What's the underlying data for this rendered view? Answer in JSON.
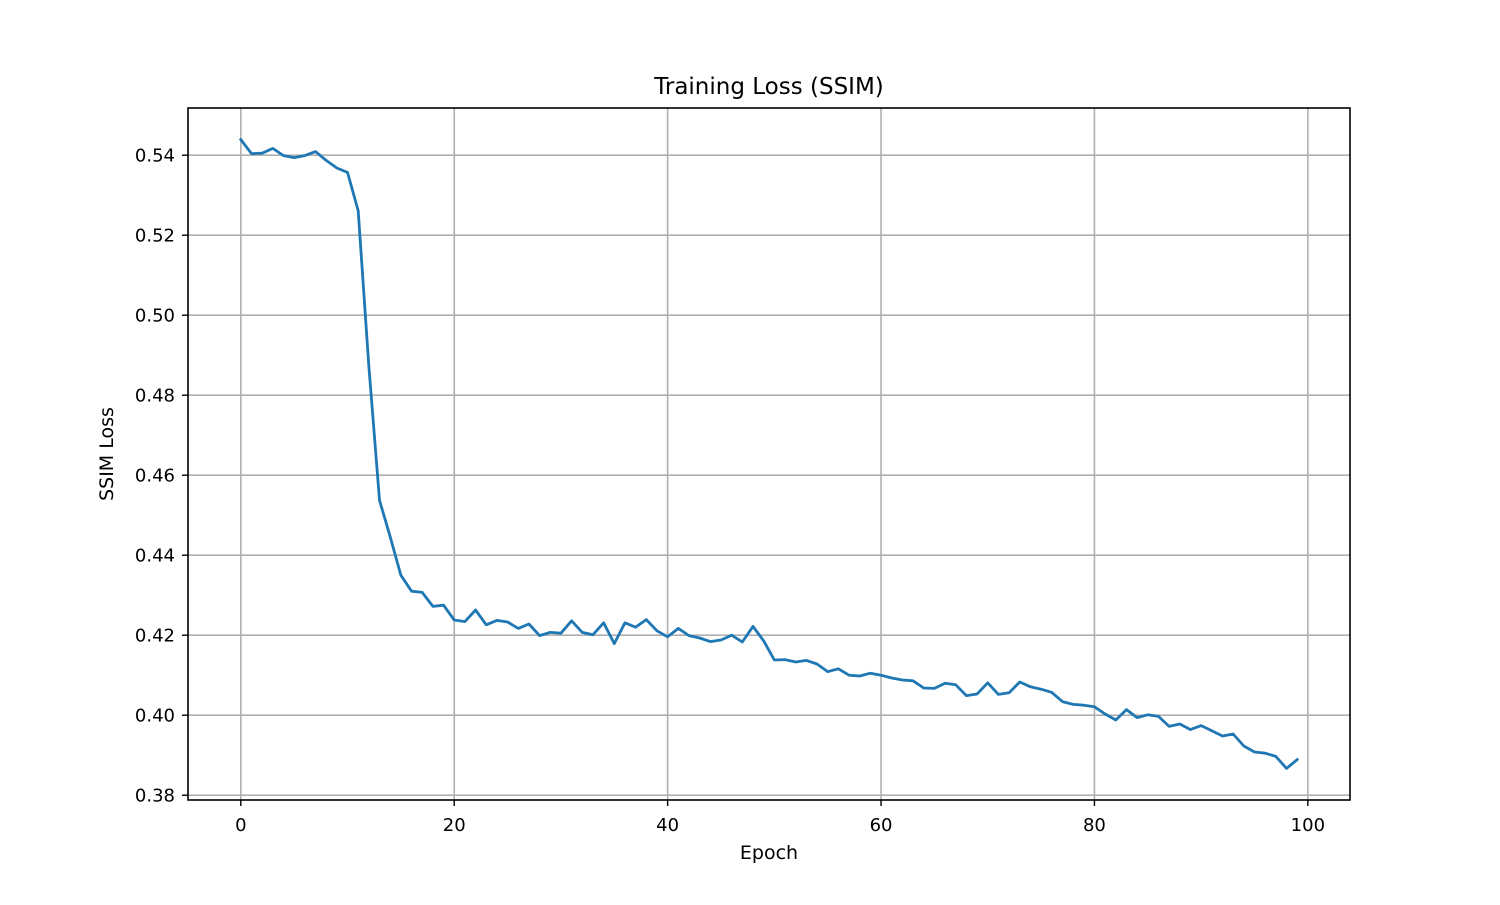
{
  "chart_data": {
    "type": "line",
    "title": "Training Loss (SSIM)",
    "xlabel": "Epoch",
    "ylabel": "SSIM Loss",
    "xlim": [
      -4.95,
      103.95
    ],
    "ylim": [
      0.3788,
      0.5518
    ],
    "xticks": [
      0,
      20,
      40,
      60,
      80,
      100
    ],
    "xtick_labels": [
      "0",
      "20",
      "40",
      "60",
      "80",
      "100"
    ],
    "yticks": [
      0.38,
      0.4,
      0.42,
      0.44,
      0.46,
      0.48,
      0.5,
      0.52,
      0.54
    ],
    "ytick_labels": [
      "0.38",
      "0.40",
      "0.42",
      "0.44",
      "0.46",
      "0.48",
      "0.50",
      "0.52",
      "0.54"
    ],
    "grid": true,
    "line_color": "#1f77b4",
    "series": [
      {
        "x": [
          0,
          1,
          2,
          3,
          4,
          5,
          6,
          7,
          8,
          9,
          10,
          11,
          12,
          13,
          14,
          15,
          16,
          17,
          18,
          19,
          20,
          21,
          22,
          23,
          24,
          25,
          26,
          27,
          28,
          29,
          30,
          31,
          32,
          33,
          34,
          35,
          36,
          37,
          38,
          39,
          40,
          41,
          42,
          43,
          44,
          45,
          46,
          47,
          48,
          49,
          50,
          51,
          52,
          53,
          54,
          55,
          56,
          57,
          58,
          59,
          60,
          61,
          62,
          63,
          64,
          65,
          66,
          67,
          68,
          69,
          70,
          71,
          72,
          73,
          74,
          75,
          76,
          77,
          78,
          79,
          80,
          81,
          82,
          83,
          84,
          85,
          86,
          87,
          88,
          89,
          90,
          91,
          92,
          93,
          94,
          95,
          96,
          97,
          98,
          99
        ],
        "values": [
          0.5439,
          0.5404,
          0.5405,
          0.5417,
          0.5399,
          0.5394,
          0.5399,
          0.5409,
          0.5387,
          0.5368,
          0.5357,
          0.5261,
          0.4872,
          0.4537,
          0.4446,
          0.435,
          0.431,
          0.4307,
          0.4272,
          0.4275,
          0.4238,
          0.4234,
          0.4263,
          0.4226,
          0.4237,
          0.4233,
          0.4217,
          0.4228,
          0.4199,
          0.4207,
          0.4205,
          0.4236,
          0.4207,
          0.4201,
          0.4231,
          0.4179,
          0.4231,
          0.422,
          0.4239,
          0.4211,
          0.4196,
          0.4217,
          0.4199,
          0.4193,
          0.4184,
          0.4188,
          0.42,
          0.4183,
          0.4222,
          0.4186,
          0.4138,
          0.4139,
          0.4133,
          0.4137,
          0.4128,
          0.4109,
          0.4116,
          0.41,
          0.4098,
          0.4105,
          0.41,
          0.4093,
          0.4088,
          0.4086,
          0.4068,
          0.4067,
          0.408,
          0.4076,
          0.4049,
          0.4053,
          0.4081,
          0.4052,
          0.4056,
          0.4083,
          0.4071,
          0.4065,
          0.4057,
          0.4034,
          0.4027,
          0.4025,
          0.4021,
          0.4003,
          0.3988,
          0.4014,
          0.3994,
          0.4001,
          0.3997,
          0.3972,
          0.3978,
          0.3964,
          0.3974,
          0.3961,
          0.3948,
          0.3953,
          0.3923,
          0.3908,
          0.3905,
          0.3897,
          0.3867,
          0.3889
        ]
      }
    ]
  }
}
